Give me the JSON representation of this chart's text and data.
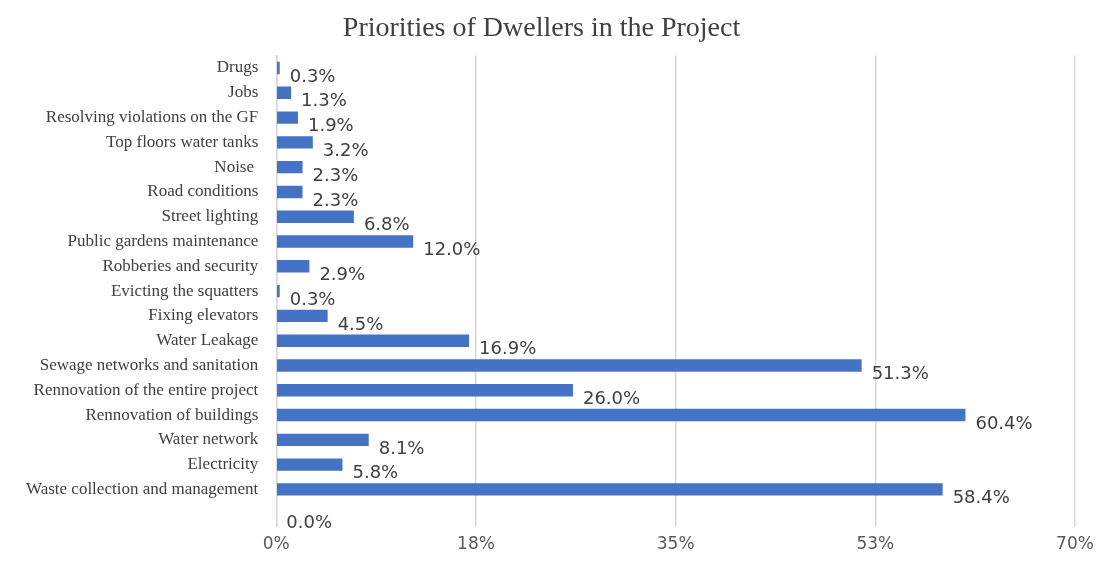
{
  "chart_data": {
    "type": "bar",
    "orientation": "horizontal",
    "title": "Priorities of Dwellers in the Project",
    "categories": [
      "Drugs",
      "Jobs",
      "Resolving violations on the GF",
      "Top floors water tanks",
      "Noise ",
      "Road conditions",
      "Street lighting",
      "Public gardens maintenance",
      "Robberies and security",
      "Evicting the squatters",
      "Fixing elevators",
      "Water Leakage",
      "Sewage networks and sanitation",
      "Rennovation of the entire project",
      "Rennovation of buildings",
      "Water network",
      "Electricity",
      "Waste collection and management",
      null
    ],
    "values": [
      0.3,
      1.3,
      1.9,
      3.2,
      2.3,
      2.3,
      6.8,
      12.0,
      2.9,
      0.3,
      4.5,
      16.9,
      51.3,
      26.0,
      60.4,
      8.1,
      5.8,
      58.4,
      0.0
    ],
    "value_labels": [
      "0.3%",
      "1.3%",
      "1.9%",
      "3.2%",
      "2.3%",
      "2.3%",
      "6.8%",
      "12.0%",
      "2.9%",
      "0.3%",
      "4.5%",
      "16.9%",
      "51.3%",
      "26.0%",
      "60.4%",
      "8.1%",
      "5.8%",
      "58.4%",
      "0.0%"
    ],
    "color": "#4472c4",
    "xlim": [
      0,
      70
    ],
    "xticks": [
      {
        "value": 0,
        "label": "0%"
      },
      {
        "value": 17.5,
        "label": "18%"
      },
      {
        "value": 35,
        "label": "35%"
      },
      {
        "value": 52.5,
        "label": "53%"
      },
      {
        "value": 70,
        "label": "70%"
      }
    ],
    "grid": "x",
    "legend": false
  }
}
